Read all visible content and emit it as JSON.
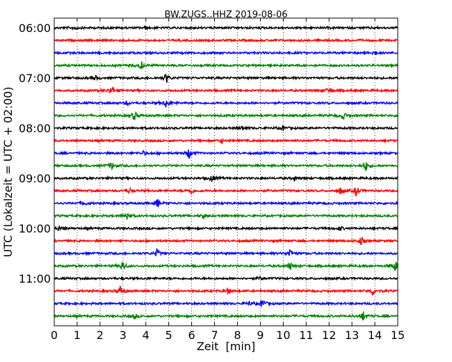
{
  "chart_data": {
    "type": "line",
    "title": "BW.ZUGS..HHZ 2019-08-06",
    "xlabel": "Zeit  [min]",
    "ylabel": "UTC (Lokalzeit = UTC + 02:00)",
    "xlim": [
      0,
      15
    ],
    "x_ticks": [
      "0",
      "1",
      "2",
      "3",
      "4",
      "5",
      "6",
      "7",
      "8",
      "9",
      "10",
      "11",
      "12",
      "13",
      "14",
      "15"
    ],
    "y_tick_labels": [
      {
        "row": 0,
        "label": "06:00"
      },
      {
        "row": 4,
        "label": "07:00"
      },
      {
        "row": 8,
        "label": "08:00"
      },
      {
        "row": 12,
        "label": "09:00"
      },
      {
        "row": 16,
        "label": "10:00"
      },
      {
        "row": 20,
        "label": "11:00"
      }
    ],
    "grid": "vertical dotted",
    "colors": [
      "#000000",
      "#ff0000",
      "#0000ff",
      "#008000"
    ],
    "traces": [
      {
        "start": "06:00",
        "color": "#000000",
        "events": [
          {
            "t": 0.9,
            "a": 0.4
          },
          {
            "t": 4.0,
            "a": 0.3
          }
        ]
      },
      {
        "start": "06:15",
        "color": "#ff0000",
        "events": []
      },
      {
        "start": "06:30",
        "color": "#0000ff",
        "events": [
          {
            "t": 14.0,
            "a": 0.6
          }
        ]
      },
      {
        "start": "06:45",
        "color": "#008000",
        "events": [
          {
            "t": 3.8,
            "a": 1.0
          }
        ]
      },
      {
        "start": "07:00",
        "color": "#000000",
        "events": [
          {
            "t": 4.9,
            "a": 1.2
          },
          {
            "t": 1.8,
            "a": 0.5
          }
        ]
      },
      {
        "start": "07:15",
        "color": "#ff0000",
        "events": [
          {
            "t": 2.5,
            "a": 1.1
          },
          {
            "t": 12.0,
            "a": 1.0
          }
        ]
      },
      {
        "start": "07:30",
        "color": "#0000ff",
        "events": [
          {
            "t": 4.9,
            "a": 1.3
          },
          {
            "t": 3.2,
            "a": 0.5
          }
        ]
      },
      {
        "start": "07:45",
        "color": "#008000",
        "events": [
          {
            "t": 3.5,
            "a": 1.1
          },
          {
            "t": 12.6,
            "a": 1.0
          }
        ]
      },
      {
        "start": "08:00",
        "color": "#000000",
        "events": [
          {
            "t": 8.2,
            "a": 0.5
          },
          {
            "t": 10.0,
            "a": 0.6
          }
        ]
      },
      {
        "start": "08:15",
        "color": "#ff0000",
        "events": [
          {
            "t": 7.3,
            "a": 0.5
          }
        ]
      },
      {
        "start": "08:30",
        "color": "#0000ff",
        "events": [
          {
            "t": 5.9,
            "a": 1.3
          },
          {
            "t": 3.9,
            "a": 0.5
          }
        ]
      },
      {
        "start": "08:45",
        "color": "#008000",
        "events": [
          {
            "t": 2.5,
            "a": 0.9
          },
          {
            "t": 13.6,
            "a": 1.3
          }
        ]
      },
      {
        "start": "09:00",
        "color": "#000000",
        "events": [
          {
            "t": 6.9,
            "a": 0.9
          },
          {
            "t": 10.5,
            "a": 0.4
          }
        ]
      },
      {
        "start": "09:15",
        "color": "#ff0000",
        "events": [
          {
            "t": 6.0,
            "a": 0.8
          },
          {
            "t": 13.2,
            "a": 1.3
          },
          {
            "t": 12.5,
            "a": 0.8
          },
          {
            "t": 3.3,
            "a": 0.6
          }
        ]
      },
      {
        "start": "09:30",
        "color": "#0000ff",
        "events": [
          {
            "t": 4.5,
            "a": 1.1
          },
          {
            "t": 1.3,
            "a": 0.6
          }
        ]
      },
      {
        "start": "09:45",
        "color": "#008000",
        "events": [
          {
            "t": 3.2,
            "a": 1.2
          },
          {
            "t": 6.5,
            "a": 0.5
          }
        ]
      },
      {
        "start": "10:00",
        "color": "#000000",
        "events": [
          {
            "t": 0.2,
            "a": 0.7
          },
          {
            "t": 12.5,
            "a": 0.4
          }
        ]
      },
      {
        "start": "10:15",
        "color": "#ff0000",
        "events": [
          {
            "t": 13.4,
            "a": 1.0
          }
        ]
      },
      {
        "start": "10:30",
        "color": "#0000ff",
        "events": [
          {
            "t": 10.3,
            "a": 1.2
          },
          {
            "t": 4.5,
            "a": 1.0
          }
        ]
      },
      {
        "start": "10:45",
        "color": "#008000",
        "events": [
          {
            "t": 3.0,
            "a": 1.3
          },
          {
            "t": 10.3,
            "a": 0.9
          },
          {
            "t": 14.9,
            "a": 1.2
          }
        ]
      },
      {
        "start": "11:00",
        "color": "#000000",
        "events": [
          {
            "t": 9.0,
            "a": 0.4
          }
        ]
      },
      {
        "start": "11:15",
        "color": "#ff0000",
        "events": [
          {
            "t": 2.9,
            "a": 1.3
          },
          {
            "t": 7.6,
            "a": 0.8
          },
          {
            "t": 13.9,
            "a": 1.0
          }
        ]
      },
      {
        "start": "11:30",
        "color": "#0000ff",
        "events": [
          {
            "t": 9.1,
            "a": 1.2
          },
          {
            "t": 8.5,
            "a": 0.6
          }
        ]
      },
      {
        "start": "11:45",
        "color": "#008000",
        "events": [
          {
            "t": 13.5,
            "a": 1.2
          },
          {
            "t": 3.5,
            "a": 0.5
          }
        ]
      }
    ]
  }
}
